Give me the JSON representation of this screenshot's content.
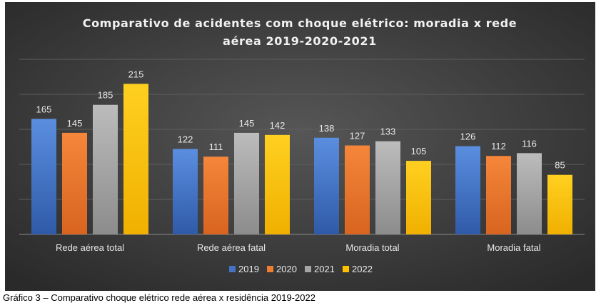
{
  "caption": "Gráfico 3 – Comparativo choque elétrico rede aérea x residência 2019-2022",
  "chart_data": {
    "type": "bar",
    "title": "Comparativo de acidentes com choque elétrico: moradia x rede aérea 2019-2020-2021",
    "title_lines": [
      "Comparativo de acidentes com choque elétrico: moradia x rede",
      "aérea 2019-2020-2021"
    ],
    "categories": [
      "Rede aérea total",
      "Rede aérea fatal",
      "Moradia total",
      "Moradia fatal"
    ],
    "series": [
      {
        "name": "2019",
        "values": [
          165,
          122,
          138,
          126
        ],
        "color": "#4472C4"
      },
      {
        "name": "2020",
        "values": [
          145,
          111,
          127,
          112
        ],
        "color": "#ED7D31"
      },
      {
        "name": "2021",
        "values": [
          185,
          145,
          133,
          116
        ],
        "color": "#A5A5A5"
      },
      {
        "name": "2022",
        "values": [
          215,
          142,
          105,
          85
        ],
        "color": "#FFC000"
      }
    ],
    "ylim": [
      0,
      250
    ],
    "grid": true,
    "legend": "bottom",
    "background": "#404040"
  }
}
